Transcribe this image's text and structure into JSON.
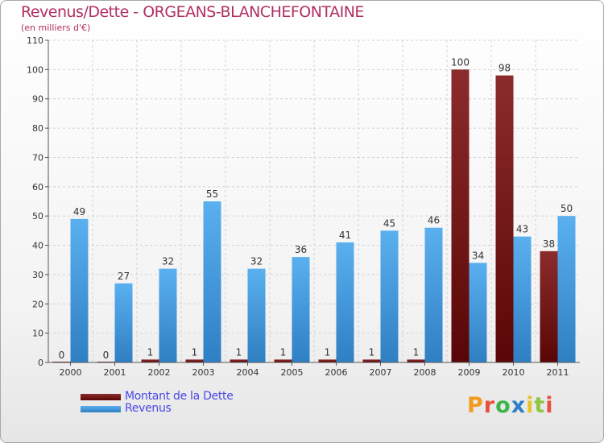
{
  "header": {
    "title": "Revenus/Dette - ORGEANS-BLANCHEFONTAINE",
    "subtitle": "(en milliers d'€)"
  },
  "legend": {
    "items": [
      {
        "label": "Montant de la Dette",
        "color": "#6b0f0f"
      },
      {
        "label": "Revenus",
        "color": "#4aa3e8"
      }
    ]
  },
  "logo": {
    "text": "Proxiti"
  },
  "chart_data": {
    "type": "bar",
    "title": "Revenus/Dette - ORGEANS-BLANCHEFONTAINE",
    "subtitle": "(en milliers d'€)",
    "categories": [
      "2000",
      "2001",
      "2002",
      "2003",
      "2004",
      "2005",
      "2006",
      "2007",
      "2008",
      "2009",
      "2010",
      "2011"
    ],
    "series": [
      {
        "name": "Montant de la Dette",
        "values": [
          0,
          0,
          1,
          1,
          1,
          1,
          1,
          1,
          1,
          100,
          98,
          38
        ],
        "color": "#6b0f0f"
      },
      {
        "name": "Revenus",
        "values": [
          49,
          27,
          32,
          55,
          32,
          36,
          41,
          45,
          46,
          34,
          43,
          50
        ],
        "color": "#4aa3e8"
      }
    ],
    "ylim": [
      0,
      110
    ],
    "yticks": [
      0,
      10,
      20,
      30,
      40,
      50,
      60,
      70,
      80,
      90,
      100,
      110
    ],
    "grid": true,
    "legend_position": "bottom-left"
  }
}
